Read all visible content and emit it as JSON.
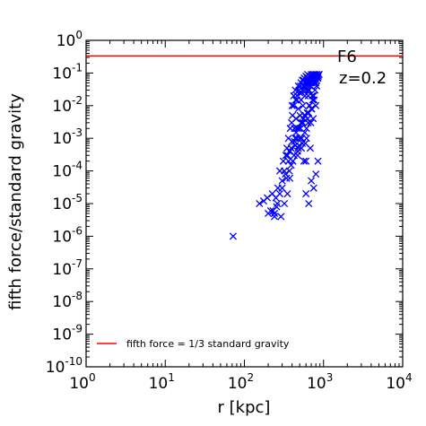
{
  "chart_data": {
    "type": "scatter",
    "xlabel": "r [kpc]",
    "ylabel": "fifth force/standard gravity",
    "xscale": "log",
    "yscale": "log",
    "xlim": [
      1,
      10000
    ],
    "ylim": [
      1e-10,
      1
    ],
    "x_ticks": [
      {
        "base": "10",
        "exp": "0",
        "value": 1
      },
      {
        "base": "10",
        "exp": "1",
        "value": 10
      },
      {
        "base": "10",
        "exp": "2",
        "value": 100
      },
      {
        "base": "10",
        "exp": "3",
        "value": 1000
      },
      {
        "base": "10",
        "exp": "4",
        "value": 10000
      }
    ],
    "y_ticks": [
      {
        "base": "10",
        "exp": "0",
        "value": 1
      },
      {
        "base": "10",
        "exp": "-1",
        "value": 0.1
      },
      {
        "base": "10",
        "exp": "-2",
        "value": 0.01
      },
      {
        "base": "10",
        "exp": "-3",
        "value": 0.001
      },
      {
        "base": "10",
        "exp": "-4",
        "value": 0.0001
      },
      {
        "base": "10",
        "exp": "-5",
        "value": 1e-05
      },
      {
        "base": "10",
        "exp": "-6",
        "value": 1e-06
      },
      {
        "base": "10",
        "exp": "-7",
        "value": 1e-07
      },
      {
        "base": "10",
        "exp": "-8",
        "value": 1e-08
      },
      {
        "base": "10",
        "exp": "-9",
        "value": 1e-09
      },
      {
        "base": "10",
        "exp": "-10",
        "value": 1e-10
      }
    ],
    "annotations": [
      "F6",
      "z=0.2"
    ],
    "reference_line": {
      "name": "fifth force = 1/3 standard gravity",
      "y": 0.3333,
      "color": "#ff0000"
    },
    "legend_placement": "lower-left",
    "marker_color": "#0000ff",
    "series": [
      {
        "marker": "x",
        "x": [
          72,
          155,
          175,
          195,
          200,
          215,
          225,
          240,
          255,
          265,
          280,
          290,
          300,
          310,
          320,
          330,
          335,
          345,
          350,
          360,
          370,
          375,
          380,
          390,
          395,
          400,
          405,
          410,
          420,
          425,
          430,
          440,
          445,
          450,
          460,
          465,
          470,
          480,
          485,
          490,
          500,
          505,
          510,
          520,
          525,
          530,
          540,
          545,
          550,
          560,
          565,
          570,
          580,
          585,
          590,
          600,
          605,
          610,
          620,
          625,
          630,
          640,
          645,
          650,
          660,
          665,
          670,
          680,
          690,
          700,
          710,
          720,
          730,
          740,
          750,
          760,
          770,
          780,
          790,
          800,
          810,
          820,
          830,
          850,
          870,
          440,
          460,
          480,
          500,
          520,
          540,
          560,
          580,
          600,
          620,
          640,
          660,
          680,
          700,
          720,
          740,
          760,
          780,
          800,
          820,
          350,
          370,
          390,
          410,
          430,
          450,
          470,
          490,
          510,
          530,
          550,
          570,
          590,
          610,
          630,
          650,
          670,
          690,
          710,
          730,
          750,
          400,
          420,
          440,
          460,
          480,
          500,
          520,
          540,
          560,
          580,
          600,
          620,
          640,
          660,
          680,
          700,
          720,
          740,
          760,
          780,
          800,
          820,
          840,
          860,
          880,
          600,
          650,
          700,
          750,
          800,
          850,
          300,
          320,
          340,
          360,
          380,
          260,
          280,
          240,
          230,
          250
        ],
        "y": [
          1e-06,
          1e-05,
          1.2e-05,
          1.5e-05,
          5e-06,
          6e-06,
          2e-05,
          5e-06,
          8e-06,
          3e-05,
          0.0001,
          4e-06,
          5e-05,
          0.0002,
          1e-05,
          8e-05,
          0.0003,
          0.0005,
          2e-05,
          0.001,
          0.0004,
          6e-05,
          0.002,
          0.00015,
          0.003,
          0.0008,
          0.005,
          0.0002,
          0.01,
          0.0003,
          0.002,
          0.0006,
          0.015,
          0.004,
          0.001,
          0.02,
          0.0003,
          0.008,
          0.002,
          0.03,
          0.001,
          0.005,
          0.04,
          0.015,
          0.0005,
          0.025,
          0.06,
          0.003,
          0.01,
          0.04,
          0.0002,
          0.07,
          0.02,
          0.005,
          0.05,
          0.08,
          0.03,
          0.001,
          0.06,
          0.04,
          0.09,
          0.02,
          0.07,
          0.05,
          0.03,
          0.08,
          0.06,
          0.04,
          0.07,
          0.09,
          0.05,
          0.08,
          0.06,
          0.09,
          0.07,
          0.08,
          0.05,
          0.09,
          0.07,
          0.08,
          0.06,
          0.09,
          0.08,
          0.07,
          0.09,
          0.001,
          0.002,
          0.0005,
          0.001,
          0.003,
          0.0007,
          0.004,
          0.0015,
          0.0002,
          0.006,
          0.003,
          0.01,
          0.0005,
          0.008,
          0.02,
          0.004,
          0.015,
          0.03,
          0.01,
          0.04,
          0.0003,
          0.0001,
          0.0005,
          0.0002,
          0.0008,
          0.0015,
          0.0004,
          0.0006,
          0.002,
          0.001,
          0.003,
          0.005,
          0.0007,
          0.002,
          0.004,
          0.006,
          0.01,
          0.003,
          0.008,
          0.015,
          0.02,
          0.01,
          0.02,
          0.03,
          0.015,
          0.04,
          0.025,
          0.05,
          0.03,
          0.06,
          0.04,
          0.05,
          0.07,
          0.03,
          0.06,
          0.08,
          0.05,
          0.07,
          0.09,
          0.06,
          0.08,
          0.05,
          0.09,
          0.07,
          0.08,
          0.09,
          2e-05,
          1e-05,
          5e-05,
          3e-05,
          8e-05,
          0.0002,
          3e-05,
          0.0001,
          6e-05,
          0.0002,
          0.0004,
          1e-05,
          2e-05,
          4e-06,
          6e-06,
          1.5e-05
        ]
      }
    ]
  }
}
